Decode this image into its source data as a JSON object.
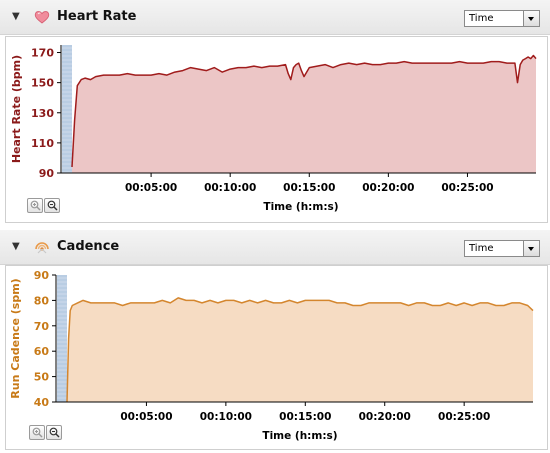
{
  "colors": {
    "hr_line": "#a01c1c",
    "hr_fill": "#ecc6c6",
    "hr_text": "#8b1a1a",
    "cad_line": "#d4862e",
    "cad_fill": "#f6dcc3",
    "cad_text": "#c87a17",
    "band": "#b9cde3"
  },
  "heart_rate": {
    "title": "Heart Rate",
    "icon": "heart-icon",
    "select_value": "Time",
    "zoom_in_icon": "zoom-in-icon",
    "zoom_out_icon": "zoom-out-icon",
    "chart_data": {
      "type": "area",
      "xlabel": "Time (h:m:s)",
      "ylabel": "Heart Rate (bpm)",
      "ylim": [
        90,
        175
      ],
      "xlim": [
        0,
        1760
      ],
      "yticks": [
        90,
        110,
        130,
        150,
        170
      ],
      "xticks": [
        300,
        600,
        900,
        1200,
        1500
      ],
      "xtick_labels": [
        "00:05:00",
        "00:10:00",
        "00:15:00",
        "00:20:00",
        "00:25:00"
      ],
      "grid": false,
      "x": [
        0,
        10,
        20,
        35,
        50,
        70,
        90,
        120,
        150,
        180,
        210,
        240,
        270,
        300,
        330,
        360,
        390,
        420,
        450,
        480,
        510,
        540,
        570,
        600,
        630,
        660,
        690,
        720,
        750,
        780,
        810,
        820,
        830,
        840,
        850,
        860,
        870,
        880,
        900,
        930,
        960,
        990,
        1020,
        1050,
        1080,
        1110,
        1140,
        1170,
        1200,
        1230,
        1260,
        1290,
        1320,
        1350,
        1380,
        1410,
        1440,
        1470,
        1500,
        1530,
        1560,
        1590,
        1620,
        1650,
        1680,
        1690,
        1700,
        1710,
        1720,
        1730,
        1740,
        1750,
        1760
      ],
      "y": [
        94,
        125,
        148,
        152,
        153,
        152,
        154,
        155,
        155,
        155,
        156,
        155,
        155,
        155,
        156,
        155,
        157,
        158,
        160,
        159,
        158,
        160,
        157,
        159,
        160,
        160,
        161,
        160,
        161,
        161,
        162,
        156,
        152,
        160,
        162,
        163,
        158,
        154,
        160,
        161,
        162,
        160,
        162,
        163,
        162,
        163,
        162,
        162,
        163,
        163,
        164,
        163,
        163,
        163,
        163,
        163,
        163,
        164,
        163,
        163,
        163,
        164,
        164,
        163,
        163,
        150,
        162,
        165,
        166,
        167,
        166,
        168,
        166
      ]
    }
  },
  "cadence": {
    "title": "Cadence",
    "icon": "cadence-icon",
    "select_value": "Time",
    "zoom_in_icon": "zoom-in-icon",
    "zoom_out_icon": "zoom-out-icon",
    "chart_data": {
      "type": "area",
      "xlabel": "Time (h:m:s)",
      "ylabel": "Run Cadence (spm)",
      "ylim": [
        40,
        90
      ],
      "xlim": [
        0,
        1760
      ],
      "yticks": [
        40,
        50,
        60,
        70,
        80,
        90
      ],
      "xticks": [
        300,
        600,
        900,
        1200,
        1500
      ],
      "xtick_labels": [
        "00:05:00",
        "00:10:00",
        "00:15:00",
        "00:20:00",
        "00:25:00"
      ],
      "grid": false,
      "x": [
        0,
        6,
        12,
        20,
        40,
        60,
        90,
        120,
        150,
        180,
        210,
        240,
        270,
        300,
        330,
        360,
        390,
        420,
        450,
        480,
        510,
        540,
        570,
        600,
        630,
        660,
        690,
        720,
        750,
        780,
        810,
        840,
        870,
        900,
        930,
        960,
        990,
        1020,
        1050,
        1080,
        1110,
        1140,
        1170,
        1200,
        1230,
        1260,
        1290,
        1320,
        1350,
        1380,
        1410,
        1440,
        1470,
        1500,
        1530,
        1560,
        1590,
        1620,
        1650,
        1680,
        1710,
        1740,
        1760
      ],
      "y": [
        40,
        65,
        76,
        78,
        79,
        80,
        79,
        79,
        79,
        79,
        78,
        79,
        79,
        79,
        79,
        80,
        79,
        81,
        80,
        80,
        79,
        80,
        79,
        80,
        80,
        79,
        80,
        79,
        80,
        79,
        79,
        80,
        79,
        80,
        80,
        80,
        80,
        79,
        79,
        78,
        78,
        79,
        79,
        79,
        79,
        79,
        78,
        79,
        79,
        78,
        78,
        79,
        78,
        79,
        78,
        79,
        79,
        78,
        78,
        79,
        79,
        78,
        76
      ]
    }
  }
}
